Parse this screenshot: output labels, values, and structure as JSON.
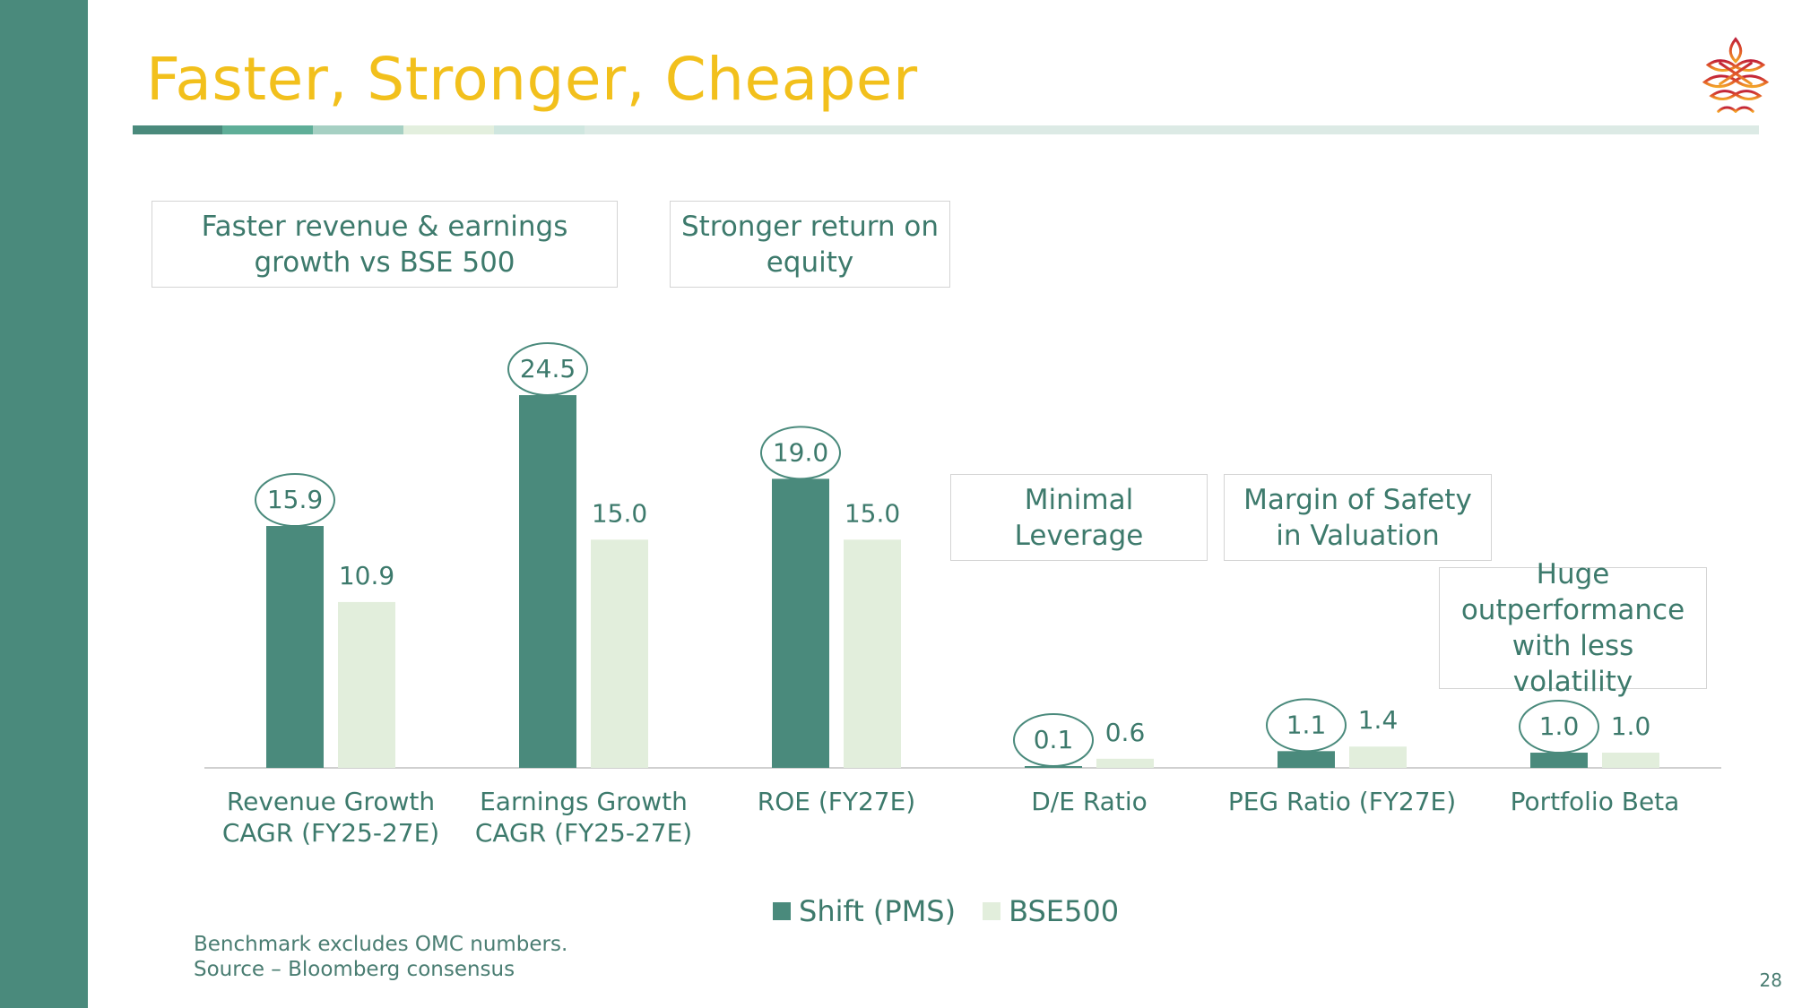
{
  "slide": {
    "title": "Faster, Stronger, Cheaper",
    "page_number": "28",
    "footnote_lines": [
      "Benchmark excludes OMC numbers.",
      "Source – Bloomberg consensus"
    ]
  },
  "notes": {
    "growth": "Faster revenue & earnings growth vs BSE 500",
    "roe": "Stronger return on equity",
    "leverage": "Minimal Leverage",
    "valuation": "Margin of Safety in Valuation",
    "volatility": "Huge outperformance with less volatility"
  },
  "colors": {
    "accent_bar": "#4a8a7c",
    "title": "#f2c01c",
    "shift_series": "#4a8a7c",
    "bse_series": "#e2eedc",
    "label_text": "#3d7a6c",
    "rule_segments": [
      "#4a8a7c",
      "#5fae98",
      "#a6d0c3",
      "#e3efde",
      "#cfe6df"
    ]
  },
  "chart_data": {
    "type": "bar",
    "categories": [
      [
        "Revenue Growth",
        "CAGR (FY25-27E)"
      ],
      [
        "Earnings Growth",
        "CAGR (FY25-27E)"
      ],
      [
        "ROE (FY27E)"
      ],
      [
        "D/E Ratio"
      ],
      [
        "PEG Ratio (FY27E)"
      ],
      [
        "Portfolio Beta"
      ]
    ],
    "series": [
      {
        "name": "Shift (PMS)",
        "values": [
          15.9,
          24.5,
          19.0,
          0.1,
          1.1,
          1.0
        ],
        "labels": [
          "15.9",
          "24.5",
          "19.0",
          "0.1",
          "1.1",
          "1.0"
        ]
      },
      {
        "name": "BSE500",
        "values": [
          10.9,
          15.0,
          15.0,
          0.6,
          1.4,
          1.0
        ],
        "labels": [
          "10.9",
          "15.0",
          "15.0",
          "0.6",
          "1.4",
          "1.0"
        ]
      }
    ],
    "ylim": [
      0,
      24.5
    ],
    "legend_position": "bottom",
    "grid": false,
    "circled_series": "Shift (PMS)"
  }
}
